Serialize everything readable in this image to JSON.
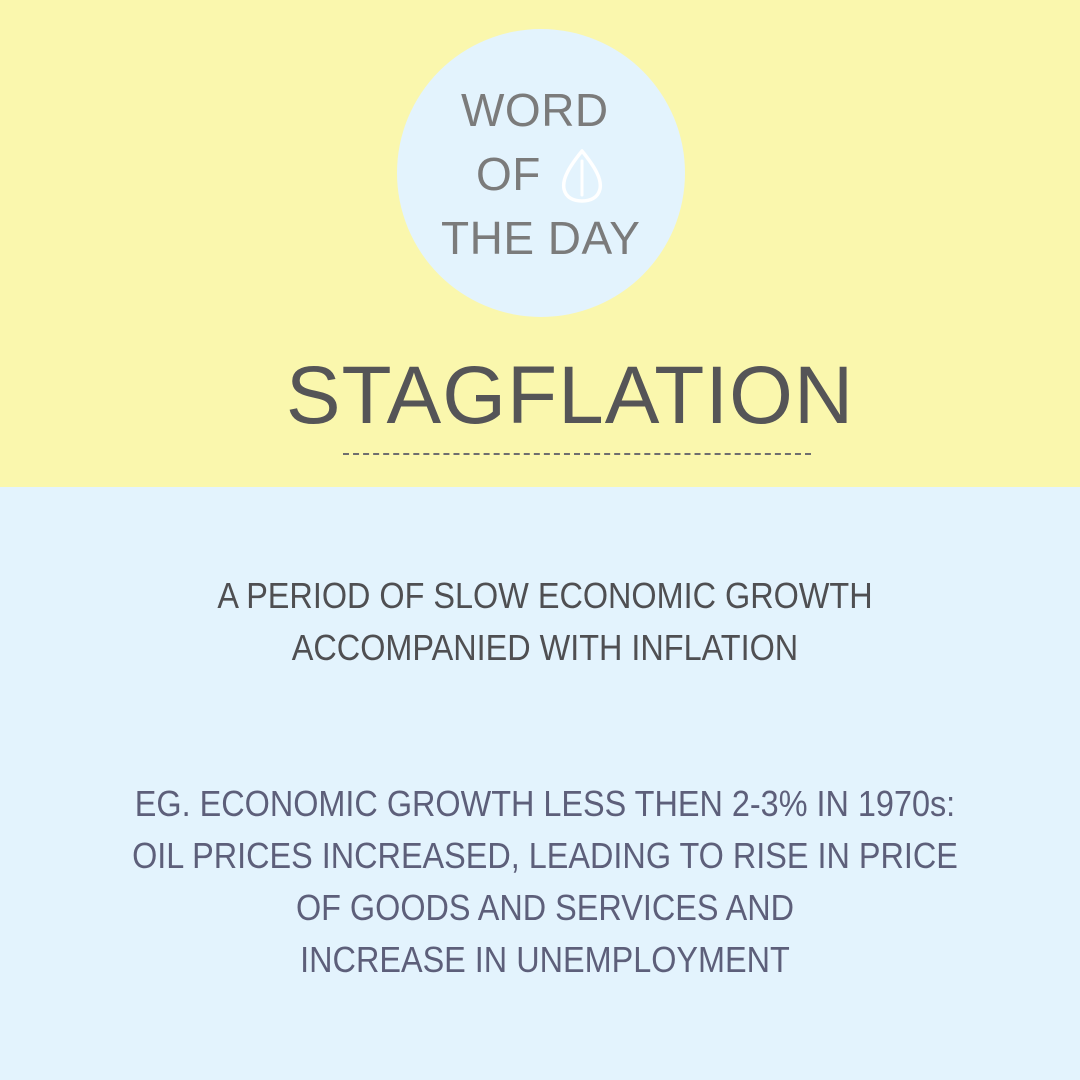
{
  "badge": {
    "line1": "WORD",
    "line2": "OF",
    "line3": "THE DAY",
    "icon": "leaf-icon"
  },
  "word": "STAGFLATION",
  "definition": {
    "lines": [
      "A PERIOD OF SLOW ECONOMIC GROWTH",
      "ACCOMPANIED WITH INFLATION"
    ]
  },
  "example": {
    "lines": [
      "EG. ECONOMIC GROWTH LESS THEN 2-3% IN 1970s:",
      "OIL PRICES INCREASED, LEADING TO RISE IN PRICE",
      "OF GOODS AND SERVICES AND",
      "INCREASE IN UNEMPLOYMENT"
    ]
  },
  "colors": {
    "top_background": "#faf7ad",
    "bottom_background": "#e3f3fd",
    "badge_circle": "#e3f3fd",
    "badge_text": "#7b7b7b",
    "word_text": "#555557",
    "definition_text": "#4f4f52",
    "example_text": "#5d5f7a"
  }
}
